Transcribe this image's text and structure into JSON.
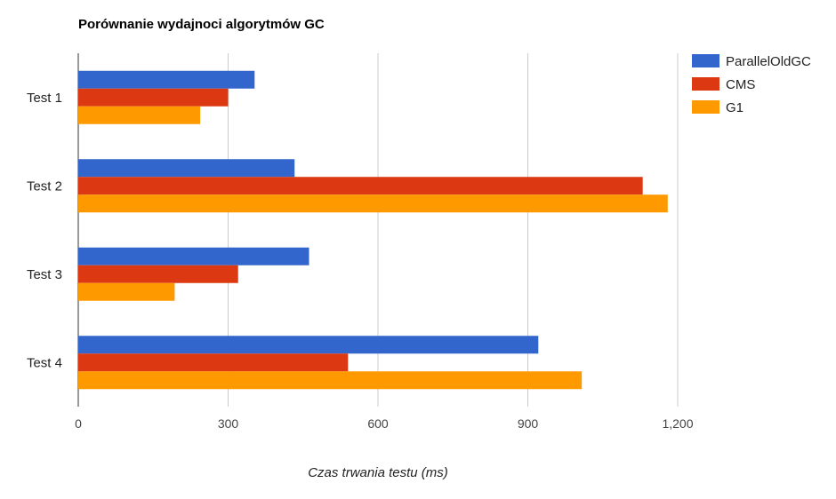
{
  "chart_data": {
    "type": "bar",
    "orientation": "horizontal",
    "title": "Porównanie wydajnoci algorytmów GC",
    "xlabel": "Czas trwania testu (ms)",
    "ylabel": "",
    "categories": [
      "Test 1",
      "Test 2",
      "Test 3",
      "Test 4"
    ],
    "series": [
      {
        "name": "ParallelOldGC",
        "color": "#3366cc",
        "values": [
          353,
          433,
          462,
          921
        ]
      },
      {
        "name": "CMS",
        "color": "#dc3912",
        "values": [
          300,
          1130,
          320,
          540
        ]
      },
      {
        "name": "G1",
        "color": "#ff9900",
        "values": [
          244,
          1180,
          193,
          1008
        ]
      }
    ],
    "xlim": [
      0,
      1200
    ],
    "xticks": [
      0,
      300,
      600,
      900,
      1200
    ],
    "xtick_labels": [
      "0",
      "300",
      "600",
      "900",
      "1,200"
    ],
    "grid": true,
    "legend_position": "right"
  }
}
